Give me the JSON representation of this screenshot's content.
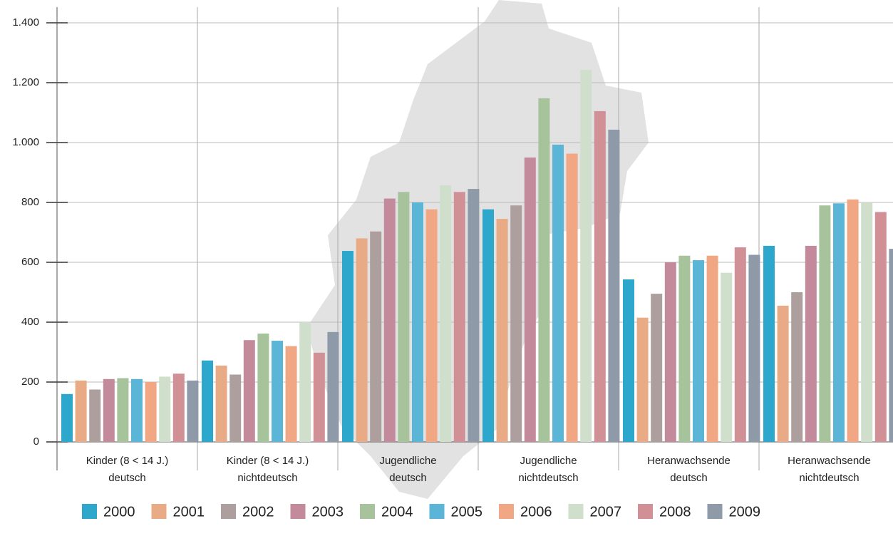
{
  "chart_data": {
    "type": "bar",
    "categories": [
      [
        "Kinder (8 < 14 J.)",
        "deutsch"
      ],
      [
        "Kinder (8 < 14 J.)",
        "nichtdeutsch"
      ],
      [
        "Jugendliche",
        "deutsch"
      ],
      [
        "Jugendliche",
        "nichtdeutsch"
      ],
      [
        "Heranwachsende",
        "deutsch"
      ],
      [
        "Heranwachsende",
        "nichtdeutsch"
      ]
    ],
    "series": [
      {
        "name": "2000",
        "color": "#2ea7cc",
        "values": [
          160,
          272,
          638,
          777,
          543,
          655
        ]
      },
      {
        "name": "2001",
        "color": "#e9ab86",
        "values": [
          205,
          255,
          680,
          745,
          415,
          455
        ]
      },
      {
        "name": "2002",
        "color": "#ae9f9f",
        "values": [
          175,
          225,
          703,
          790,
          495,
          500
        ]
      },
      {
        "name": "2003",
        "color": "#c38a9c",
        "values": [
          210,
          340,
          813,
          950,
          600,
          655
        ]
      },
      {
        "name": "2004",
        "color": "#a6c39c",
        "values": [
          213,
          362,
          835,
          1148,
          622,
          790
        ]
      },
      {
        "name": "2005",
        "color": "#5bb5d7",
        "values": [
          210,
          338,
          800,
          993,
          607,
          797
        ]
      },
      {
        "name": "2006",
        "color": "#f1a684",
        "values": [
          200,
          320,
          777,
          963,
          622,
          810
        ]
      },
      {
        "name": "2007",
        "color": "#cfdfcc",
        "values": [
          218,
          400,
          857,
          1243,
          565,
          800
        ]
      },
      {
        "name": "2008",
        "color": "#d18f96",
        "values": [
          228,
          298,
          835,
          1105,
          650,
          768
        ]
      },
      {
        "name": "2009",
        "color": "#8e9aa8",
        "values": [
          205,
          367,
          845,
          1043,
          625,
          645
        ]
      }
    ],
    "ylim": [
      0,
      1400
    ],
    "yticks": [
      0,
      200,
      400,
      600,
      800,
      {
        "value": 1000,
        "label": "1.000"
      },
      {
        "value": 1200,
        "label": "1.200"
      },
      {
        "value": 1400,
        "label": "1.400"
      }
    ],
    "grid": true
  }
}
